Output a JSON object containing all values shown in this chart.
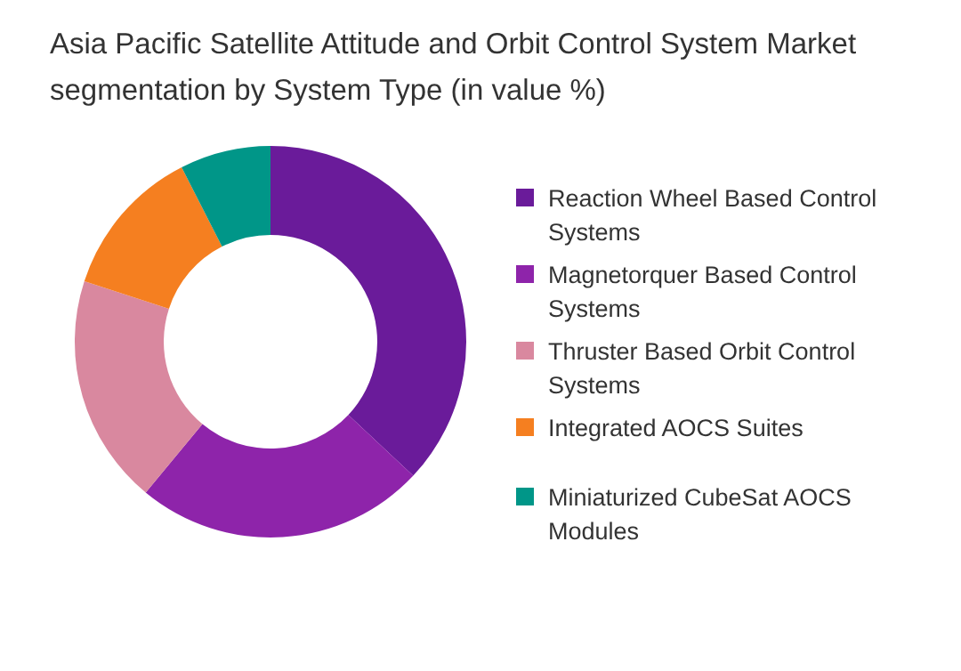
{
  "chart_data": {
    "type": "donut",
    "title": "Asia Pacific Satellite Attitude and Orbit Control System Market segmentation by System Type (in value %)",
    "categories": [
      "Reaction Wheel Based Control Systems",
      "Magnetorquer Based Control Systems",
      "Thruster Based Orbit Control Systems",
      "Integrated AOCS Suites",
      "Miniaturized CubeSat AOCS Modules"
    ],
    "values": [
      37,
      24,
      19,
      12.5,
      7.5
    ],
    "colors": [
      "#6a1b9a",
      "#8e24aa",
      "#d9889f",
      "#f57f20",
      "#009688"
    ],
    "legend": "right"
  }
}
